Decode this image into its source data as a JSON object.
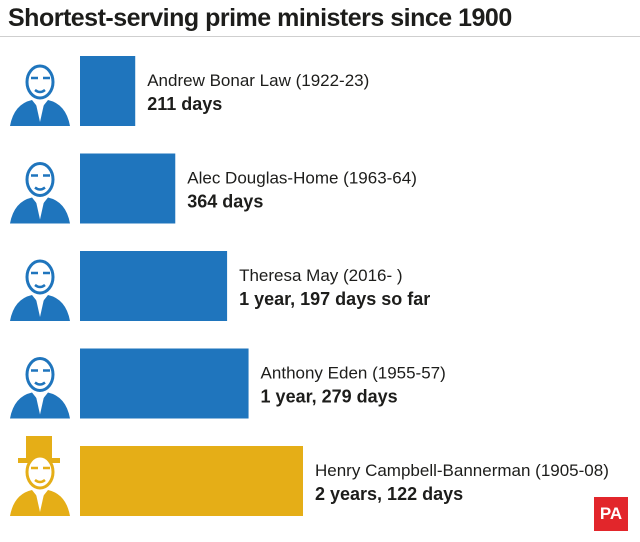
{
  "chart_data": {
    "type": "bar",
    "orientation": "horizontal",
    "title": "Shortest-serving prime ministers since 1900",
    "unit": "days",
    "categories": [
      "Andrew Bonar Law (1922-23)",
      "Alec Douglas-Home (1963-64)",
      "Theresa May (2016- )",
      "Anthony Eden (1955-57)",
      "Henry Campbell-Bannerman (1905-08)"
    ],
    "values": [
      211,
      364,
      562,
      644,
      852
    ],
    "value_labels": [
      "211 days",
      "364 days",
      "1 year, 197 days so far",
      "1 year, 279 days",
      "2 years, 122 days"
    ],
    "bar_colors": [
      "#1f75bd",
      "#1f75bd",
      "#1f75bd",
      "#1f75bd",
      "#e5ae17"
    ],
    "portrait_icons": [
      "bonar-law-portrait-icon",
      "douglas-home-portrait-icon",
      "theresa-may-portrait-icon",
      "anthony-eden-portrait-icon",
      "campbell-bannerman-portrait-icon"
    ],
    "xlim": [
      0,
      852
    ]
  },
  "branding": {
    "logo": "PA"
  }
}
